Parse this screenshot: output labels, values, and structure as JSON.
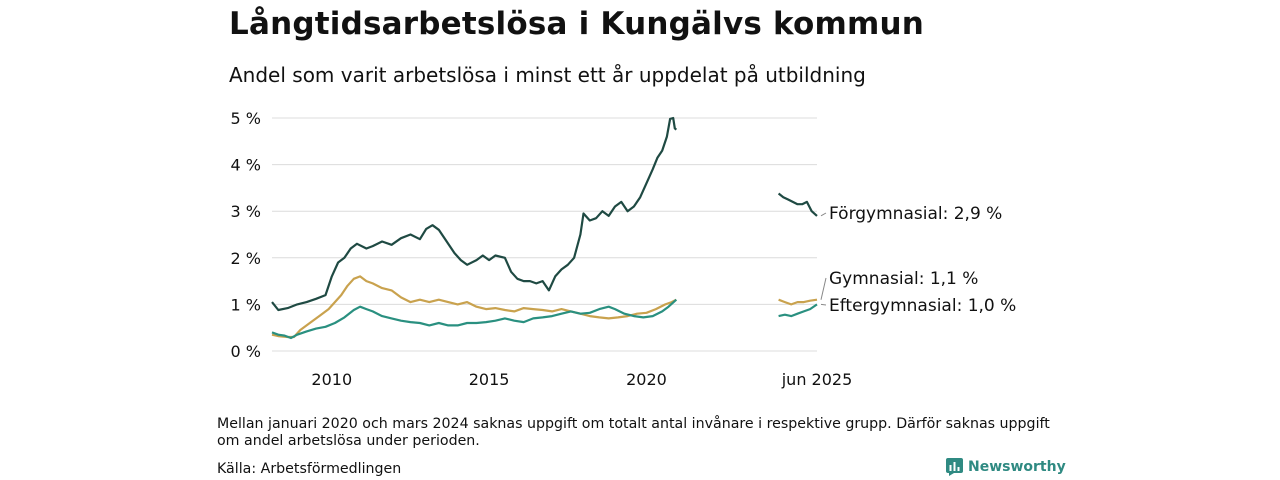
{
  "header": {
    "title": "Långtidsarbetslösa i Kungälvs kommun",
    "subtitle": "Andel som varit arbetslösa i minst ett år uppdelat på utbildning"
  },
  "chart_data": {
    "type": "line",
    "y_ticks": [
      "0 %",
      "1 %",
      "2 %",
      "3 %",
      "4 %",
      "5 %"
    ],
    "ylim": [
      0,
      5
    ],
    "grid": true,
    "x_ticks": [
      {
        "label": "2010",
        "x": 2010
      },
      {
        "label": "2015",
        "x": 2015
      },
      {
        "label": "2020",
        "x": 2020
      },
      {
        "label": "jun 2025",
        "x": 2025.42
      }
    ],
    "segment_breaks": [
      [
        2021.0,
        2024.2
      ]
    ],
    "series": [
      {
        "name": "Förgymnasial",
        "label": "Förgymnasial: 2,9 %",
        "color": "#1f4a43",
        "points": [
          [
            2008.1,
            1.05
          ],
          [
            2008.3,
            0.88
          ],
          [
            2008.6,
            0.92
          ],
          [
            2008.9,
            1.0
          ],
          [
            2009.2,
            1.05
          ],
          [
            2009.5,
            1.12
          ],
          [
            2009.8,
            1.2
          ],
          [
            2010.0,
            1.6
          ],
          [
            2010.2,
            1.9
          ],
          [
            2010.4,
            2.0
          ],
          [
            2010.6,
            2.2
          ],
          [
            2010.8,
            2.3
          ],
          [
            2011.1,
            2.2
          ],
          [
            2011.3,
            2.25
          ],
          [
            2011.6,
            2.35
          ],
          [
            2011.9,
            2.28
          ],
          [
            2012.2,
            2.42
          ],
          [
            2012.5,
            2.5
          ],
          [
            2012.8,
            2.4
          ],
          [
            2013.0,
            2.62
          ],
          [
            2013.2,
            2.7
          ],
          [
            2013.4,
            2.6
          ],
          [
            2013.7,
            2.3
          ],
          [
            2013.9,
            2.1
          ],
          [
            2014.1,
            1.95
          ],
          [
            2014.3,
            1.85
          ],
          [
            2014.6,
            1.95
          ],
          [
            2014.8,
            2.05
          ],
          [
            2015.0,
            1.95
          ],
          [
            2015.2,
            2.05
          ],
          [
            2015.5,
            2.0
          ],
          [
            2015.7,
            1.7
          ],
          [
            2015.9,
            1.55
          ],
          [
            2016.1,
            1.5
          ],
          [
            2016.3,
            1.5
          ],
          [
            2016.5,
            1.45
          ],
          [
            2016.7,
            1.5
          ],
          [
            2016.9,
            1.3
          ],
          [
            2017.1,
            1.6
          ],
          [
            2017.3,
            1.75
          ],
          [
            2017.5,
            1.85
          ],
          [
            2017.7,
            2.0
          ],
          [
            2017.9,
            2.5
          ],
          [
            2018.0,
            2.95
          ],
          [
            2018.2,
            2.8
          ],
          [
            2018.4,
            2.85
          ],
          [
            2018.6,
            3.0
          ],
          [
            2018.8,
            2.9
          ],
          [
            2019.0,
            3.1
          ],
          [
            2019.2,
            3.2
          ],
          [
            2019.4,
            3.0
          ],
          [
            2019.6,
            3.1
          ],
          [
            2019.8,
            3.3
          ],
          [
            2020.0,
            3.6
          ],
          [
            2020.2,
            3.9
          ],
          [
            2020.35,
            4.15
          ],
          [
            2020.5,
            4.3
          ],
          [
            2020.65,
            4.6
          ],
          [
            2020.75,
            4.98
          ],
          [
            2020.85,
            5.0
          ],
          [
            2020.9,
            4.78
          ],
          [
            2020.95,
            4.75
          ],
          null,
          [
            2024.2,
            3.38
          ],
          [
            2024.35,
            3.3
          ],
          [
            2024.5,
            3.25
          ],
          [
            2024.65,
            3.2
          ],
          [
            2024.8,
            3.15
          ],
          [
            2024.95,
            3.15
          ],
          [
            2025.1,
            3.2
          ],
          [
            2025.25,
            3.0
          ],
          [
            2025.42,
            2.9
          ]
        ]
      },
      {
        "name": "Gymnasial",
        "label": "Gymnasial: 1,1 %",
        "color": "#c9a24e",
        "points": [
          [
            2008.1,
            0.35
          ],
          [
            2008.3,
            0.32
          ],
          [
            2008.6,
            0.3
          ],
          [
            2008.8,
            0.3
          ],
          [
            2009.0,
            0.45
          ],
          [
            2009.3,
            0.6
          ],
          [
            2009.6,
            0.75
          ],
          [
            2009.9,
            0.9
          ],
          [
            2010.1,
            1.05
          ],
          [
            2010.3,
            1.2
          ],
          [
            2010.5,
            1.4
          ],
          [
            2010.7,
            1.55
          ],
          [
            2010.9,
            1.6
          ],
          [
            2011.1,
            1.5
          ],
          [
            2011.3,
            1.45
          ],
          [
            2011.6,
            1.35
          ],
          [
            2011.9,
            1.3
          ],
          [
            2012.2,
            1.15
          ],
          [
            2012.5,
            1.05
          ],
          [
            2012.8,
            1.1
          ],
          [
            2013.1,
            1.05
          ],
          [
            2013.4,
            1.1
          ],
          [
            2013.7,
            1.05
          ],
          [
            2014.0,
            1.0
          ],
          [
            2014.3,
            1.05
          ],
          [
            2014.6,
            0.95
          ],
          [
            2014.9,
            0.9
          ],
          [
            2015.2,
            0.92
          ],
          [
            2015.5,
            0.88
          ],
          [
            2015.8,
            0.85
          ],
          [
            2016.1,
            0.92
          ],
          [
            2016.4,
            0.9
          ],
          [
            2016.7,
            0.88
          ],
          [
            2017.0,
            0.85
          ],
          [
            2017.3,
            0.9
          ],
          [
            2017.6,
            0.85
          ],
          [
            2017.9,
            0.8
          ],
          [
            2018.2,
            0.75
          ],
          [
            2018.5,
            0.72
          ],
          [
            2018.8,
            0.7
          ],
          [
            2019.1,
            0.72
          ],
          [
            2019.4,
            0.75
          ],
          [
            2019.7,
            0.8
          ],
          [
            2020.0,
            0.82
          ],
          [
            2020.3,
            0.9
          ],
          [
            2020.6,
            1.0
          ],
          [
            2020.8,
            1.05
          ],
          [
            2020.95,
            1.1
          ],
          null,
          [
            2024.2,
            1.1
          ],
          [
            2024.4,
            1.05
          ],
          [
            2024.6,
            1.0
          ],
          [
            2024.8,
            1.05
          ],
          [
            2025.0,
            1.05
          ],
          [
            2025.2,
            1.08
          ],
          [
            2025.42,
            1.1
          ]
        ]
      },
      {
        "name": "Eftergymnasial",
        "label": "Eftergymnasial: 1,0 %",
        "color": "#2a9080",
        "points": [
          [
            2008.1,
            0.4
          ],
          [
            2008.3,
            0.35
          ],
          [
            2008.5,
            0.33
          ],
          [
            2008.7,
            0.28
          ],
          [
            2008.9,
            0.35
          ],
          [
            2009.2,
            0.42
          ],
          [
            2009.5,
            0.48
          ],
          [
            2009.8,
            0.52
          ],
          [
            2010.1,
            0.6
          ],
          [
            2010.4,
            0.72
          ],
          [
            2010.7,
            0.88
          ],
          [
            2010.9,
            0.95
          ],
          [
            2011.1,
            0.9
          ],
          [
            2011.3,
            0.85
          ],
          [
            2011.6,
            0.75
          ],
          [
            2011.9,
            0.7
          ],
          [
            2012.2,
            0.65
          ],
          [
            2012.5,
            0.62
          ],
          [
            2012.8,
            0.6
          ],
          [
            2013.1,
            0.55
          ],
          [
            2013.4,
            0.6
          ],
          [
            2013.7,
            0.55
          ],
          [
            2014.0,
            0.55
          ],
          [
            2014.3,
            0.6
          ],
          [
            2014.6,
            0.6
          ],
          [
            2014.9,
            0.62
          ],
          [
            2015.2,
            0.65
          ],
          [
            2015.5,
            0.7
          ],
          [
            2015.8,
            0.65
          ],
          [
            2016.1,
            0.62
          ],
          [
            2016.4,
            0.7
          ],
          [
            2016.7,
            0.72
          ],
          [
            2017.0,
            0.75
          ],
          [
            2017.3,
            0.8
          ],
          [
            2017.6,
            0.85
          ],
          [
            2017.9,
            0.8
          ],
          [
            2018.2,
            0.82
          ],
          [
            2018.5,
            0.9
          ],
          [
            2018.8,
            0.95
          ],
          [
            2019.0,
            0.9
          ],
          [
            2019.3,
            0.8
          ],
          [
            2019.6,
            0.75
          ],
          [
            2019.9,
            0.72
          ],
          [
            2020.2,
            0.75
          ],
          [
            2020.5,
            0.85
          ],
          [
            2020.7,
            0.95
          ],
          [
            2020.95,
            1.1
          ],
          null,
          [
            2024.2,
            0.75
          ],
          [
            2024.4,
            0.78
          ],
          [
            2024.6,
            0.75
          ],
          [
            2024.8,
            0.8
          ],
          [
            2025.0,
            0.85
          ],
          [
            2025.2,
            0.9
          ],
          [
            2025.42,
            1.0
          ]
        ]
      }
    ]
  },
  "footer": {
    "note": "Mellan januari 2020 och mars 2024 saknas uppgift om totalt antal invånare i respektive grupp. Därför saknas uppgift om andel arbetslösa under perioden.",
    "source": "Källa: Arbetsförmedlingen",
    "brand": "Newsworthy",
    "brand_icon": "bar-chart-logo-icon",
    "brand_color": "#2f8a82"
  }
}
